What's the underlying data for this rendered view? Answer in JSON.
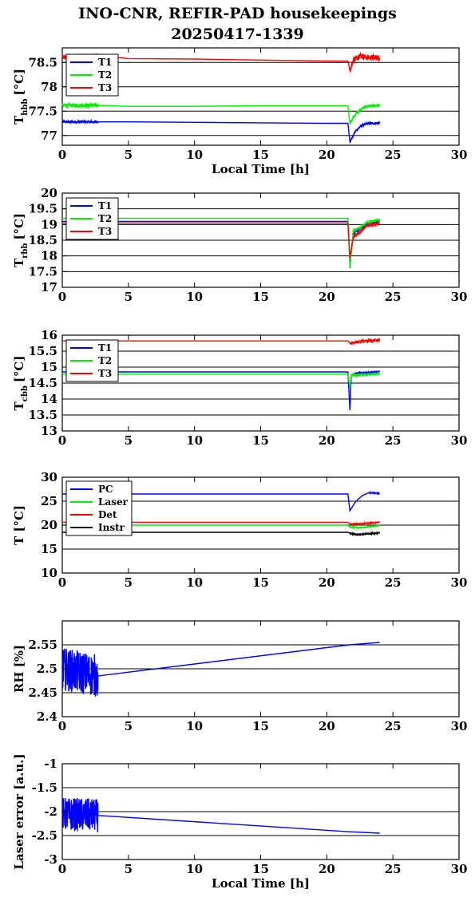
{
  "header": {
    "title": "INO-CNR, REFIR-PAD housekeepings",
    "subtitle": "20250417-1339"
  },
  "chart_data": [
    {
      "type": "line",
      "ylabel_main": "T",
      "ylabel_sub": "hbb",
      "ylabel_unit": "[°C]",
      "xlabel": "Local Time [h]",
      "xlim": [
        0,
        30
      ],
      "ylim": [
        76.8,
        78.8
      ],
      "xticks": [
        "0",
        "5",
        "10",
        "15",
        "20",
        "25",
        "30"
      ],
      "yticks": [
        {
          "v": 77,
          "label": "77"
        },
        {
          "v": 77.5,
          "label": "77.5"
        },
        {
          "v": 78,
          "label": "78"
        },
        {
          "v": 78.5,
          "label": "78.5"
        }
      ],
      "hlines": [
        77,
        77.5,
        78,
        78.5
      ],
      "series": [
        {
          "name": "T1",
          "color": "#0000ff",
          "points": [
            [
              0,
              77.28
            ],
            [
              2.7,
              77.28
            ],
            [
              5,
              77.28
            ],
            [
              10,
              77.27
            ],
            [
              15,
              77.26
            ],
            [
              20,
              77.25
            ],
            [
              21.6,
              77.25
            ],
            [
              21.75,
              76.87
            ],
            [
              22.2,
              77.1
            ],
            [
              22.6,
              77.2
            ],
            [
              23,
              77.24
            ],
            [
              24,
              77.26
            ]
          ],
          "noise": [
            [
              0,
              2.7,
              0.03
            ],
            [
              21.7,
              24,
              0.025
            ]
          ]
        },
        {
          "name": "T2",
          "color": "#00ee00",
          "points": [
            [
              0,
              77.62
            ],
            [
              2.7,
              77.62
            ],
            [
              5,
              77.6
            ],
            [
              10,
              77.6
            ],
            [
              15,
              77.61
            ],
            [
              20,
              77.61
            ],
            [
              21.6,
              77.61
            ],
            [
              21.75,
              77.25
            ],
            [
              22.2,
              77.45
            ],
            [
              22.6,
              77.55
            ],
            [
              23,
              77.6
            ],
            [
              24,
              77.62
            ]
          ],
          "noise": [
            [
              0,
              2.7,
              0.04
            ],
            [
              21.7,
              24,
              0.03
            ]
          ]
        },
        {
          "name": "T3",
          "color": "#ff0000",
          "points": [
            [
              0,
              78.6
            ],
            [
              2.7,
              78.65
            ],
            [
              5,
              78.58
            ],
            [
              10,
              78.57
            ],
            [
              15,
              78.55
            ],
            [
              20,
              78.53
            ],
            [
              21.6,
              78.53
            ],
            [
              21.75,
              78.33
            ],
            [
              22,
              78.55
            ],
            [
              22.5,
              78.65
            ],
            [
              23,
              78.6
            ],
            [
              24,
              78.6
            ]
          ],
          "noise": [
            [
              0,
              2.7,
              0.04
            ],
            [
              21.7,
              24,
              0.06
            ]
          ]
        }
      ]
    },
    {
      "type": "line",
      "ylabel_main": "T",
      "ylabel_sub": "rbb",
      "ylabel_unit": "[°C]",
      "xlabel": "",
      "xlim": [
        0,
        30
      ],
      "ylim": [
        17,
        20
      ],
      "xticks": [
        "0",
        "5",
        "10",
        "15",
        "20",
        "25",
        "30"
      ],
      "yticks": [
        {
          "v": 17,
          "label": "17"
        },
        {
          "v": 17.5,
          "label": "17.5"
        },
        {
          "v": 18,
          "label": "18"
        },
        {
          "v": 18.5,
          "label": "18.5"
        },
        {
          "v": 19,
          "label": "19"
        },
        {
          "v": 19.5,
          "label": "19.5"
        },
        {
          "v": 20,
          "label": "20"
        }
      ],
      "hlines": [
        17.5,
        18,
        18.5,
        19,
        19.5
      ],
      "series": [
        {
          "name": "T1",
          "color": "#0000ff",
          "points": [
            [
              0,
              19.1
            ],
            [
              21.6,
              19.1
            ],
            [
              21.75,
              17.75
            ],
            [
              22,
              18.7
            ],
            [
              22.5,
              18.85
            ],
            [
              23,
              19.0
            ],
            [
              24,
              19.1
            ]
          ],
          "noise": [
            [
              21.7,
              24,
              0.04
            ]
          ]
        },
        {
          "name": "T2",
          "color": "#00ee00",
          "points": [
            [
              0,
              19.2
            ],
            [
              21.6,
              19.2
            ],
            [
              21.75,
              17.6
            ],
            [
              22,
              18.8
            ],
            [
              22.5,
              18.9
            ],
            [
              23,
              19.05
            ],
            [
              24,
              19.15
            ]
          ],
          "noise": [
            [
              21.7,
              24,
              0.04
            ]
          ]
        },
        {
          "name": "T3",
          "color": "#ff0000",
          "points": [
            [
              0,
              19.05
            ],
            [
              21.6,
              19.05
            ],
            [
              21.75,
              17.95
            ],
            [
              22,
              18.6
            ],
            [
              22.5,
              18.75
            ],
            [
              23,
              18.95
            ],
            [
              24,
              19.05
            ]
          ],
          "noise": [
            [
              21.7,
              24,
              0.05
            ]
          ]
        }
      ]
    },
    {
      "type": "line",
      "ylabel_main": "T",
      "ylabel_sub": "cbb",
      "ylabel_unit": "[°C]",
      "xlabel": "",
      "xlim": [
        0,
        30
      ],
      "ylim": [
        13,
        16
      ],
      "xticks": [
        "0",
        "5",
        "10",
        "15",
        "20",
        "25",
        "30"
      ],
      "yticks": [
        {
          "v": 13,
          "label": "13"
        },
        {
          "v": 13.5,
          "label": "13.5"
        },
        {
          "v": 14,
          "label": "14"
        },
        {
          "v": 14.5,
          "label": "14.5"
        },
        {
          "v": 15,
          "label": "15"
        },
        {
          "v": 15.5,
          "label": "15.5"
        },
        {
          "v": 16,
          "label": "16"
        }
      ],
      "hlines": [
        13.5,
        14,
        14.5,
        15,
        15.5
      ],
      "series": [
        {
          "name": "T1",
          "color": "#0000ff",
          "points": [
            [
              0,
              14.85
            ],
            [
              21.6,
              14.85
            ],
            [
              21.75,
              13.65
            ],
            [
              21.85,
              14.75
            ],
            [
              22.5,
              14.82
            ],
            [
              24,
              14.85
            ]
          ],
          "noise": [
            [
              21.7,
              24,
              0.03
            ]
          ]
        },
        {
          "name": "T2",
          "color": "#00ee00",
          "points": [
            [
              0,
              14.78
            ],
            [
              21.6,
              14.78
            ],
            [
              21.75,
              14.35
            ],
            [
              21.85,
              14.75
            ],
            [
              22.5,
              14.75
            ],
            [
              24,
              14.8
            ]
          ],
          "noise": [
            [
              21.7,
              24,
              0.04
            ]
          ]
        },
        {
          "name": "T3",
          "color": "#ff0000",
          "points": [
            [
              0,
              15.82
            ],
            [
              21.6,
              15.82
            ],
            [
              21.75,
              15.75
            ],
            [
              22.5,
              15.8
            ],
            [
              24,
              15.85
            ]
          ],
          "noise": [
            [
              0,
              2.7,
              0.02
            ],
            [
              21.7,
              24,
              0.04
            ]
          ]
        }
      ]
    },
    {
      "type": "line",
      "ylabel_main": "T [°C]",
      "ylabel_sub": "",
      "ylabel_unit": "",
      "xlabel": "",
      "xlim": [
        0,
        30
      ],
      "ylim": [
        10,
        30
      ],
      "xticks": [
        "0",
        "5",
        "10",
        "15",
        "20",
        "25",
        "30"
      ],
      "yticks": [
        {
          "v": 10,
          "label": "10"
        },
        {
          "v": 15,
          "label": "15"
        },
        {
          "v": 20,
          "label": "20"
        },
        {
          "v": 25,
          "label": "25"
        },
        {
          "v": 30,
          "label": "30"
        }
      ],
      "hlines": [
        15,
        20,
        25
      ],
      "series": [
        {
          "name": "PC",
          "color": "#0000ff",
          "points": [
            [
              0,
              26.5
            ],
            [
              21.6,
              26.5
            ],
            [
              21.75,
              23.0
            ],
            [
              22.2,
              25.0
            ],
            [
              22.7,
              26.2
            ],
            [
              23.2,
              26.8
            ],
            [
              24,
              26.6
            ]
          ],
          "noise": [
            [
              23,
              24,
              0.1
            ]
          ]
        },
        {
          "name": "Laser",
          "color": "#00ee00",
          "points": [
            [
              0,
              20.0
            ],
            [
              21.6,
              20.0
            ],
            [
              21.75,
              19.6
            ],
            [
              22.5,
              19.5
            ],
            [
              23,
              19.6
            ],
            [
              24,
              19.9
            ]
          ],
          "noise": [
            [
              21.7,
              24,
              0.1
            ]
          ]
        },
        {
          "name": "Det",
          "color": "#ff0000",
          "points": [
            [
              0,
              20.6
            ],
            [
              21.6,
              20.6
            ],
            [
              21.75,
              20.2
            ],
            [
              22.5,
              20.3
            ],
            [
              24,
              20.6
            ]
          ],
          "noise": [
            [
              21.7,
              24,
              0.1
            ]
          ]
        },
        {
          "name": "Instr",
          "color": "#000000",
          "points": [
            [
              0,
              18.5
            ],
            [
              21.6,
              18.5
            ],
            [
              21.75,
              18.3
            ],
            [
              22.5,
              18.0
            ],
            [
              24,
              18.4
            ]
          ],
          "noise": [
            [
              21.7,
              24,
              0.15
            ]
          ]
        }
      ]
    },
    {
      "type": "line",
      "ylabel_main": "RH [%]",
      "ylabel_sub": "",
      "ylabel_unit": "",
      "xlabel": "",
      "xlim": [
        0,
        30
      ],
      "ylim": [
        2.4,
        2.6
      ],
      "xticks": [
        "0",
        "5",
        "10",
        "15",
        "20",
        "25",
        "30"
      ],
      "yticks": [
        {
          "v": 2.4,
          "label": "2.4"
        },
        {
          "v": 2.45,
          "label": "2.45"
        },
        {
          "v": 2.5,
          "label": "2.5"
        },
        {
          "v": 2.55,
          "label": "2.55"
        }
      ],
      "hlines": [
        2.45,
        2.5,
        2.55
      ],
      "series": [
        {
          "name": "",
          "color": "#0000ff",
          "points": [
            [
              0,
              2.5
            ],
            [
              2.7,
              2.485
            ],
            [
              21.7,
              2.55
            ],
            [
              24,
              2.555
            ]
          ],
          "noise": [
            [
              0,
              2.8,
              0.045
            ],
            [
              21.8,
              24,
              0.045
            ]
          ]
        }
      ]
    },
    {
      "type": "line",
      "ylabel_main": "Laser error [a.u.]",
      "ylabel_sub": "",
      "ylabel_unit": "",
      "xlabel": "Local Time [h]",
      "xlim": [
        0,
        30
      ],
      "ylim": [
        -3,
        -1
      ],
      "xticks": [
        "0",
        "5",
        "10",
        "15",
        "20",
        "25",
        "30"
      ],
      "yticks": [
        {
          "v": -3,
          "label": "-3"
        },
        {
          "v": -2.5,
          "label": "-2.5"
        },
        {
          "v": -2,
          "label": "-2"
        },
        {
          "v": -1.5,
          "label": "-1.5"
        },
        {
          "v": -1,
          "label": "-1"
        }
      ],
      "hlines": [
        -2.5,
        -2,
        -1.5
      ],
      "series": [
        {
          "name": "",
          "color": "#0000ff",
          "points": [
            [
              0,
              -2.05
            ],
            [
              2.7,
              -2.08
            ],
            [
              21.7,
              -2.42
            ],
            [
              24,
              -2.45
            ]
          ],
          "noise": [
            [
              0,
              2.8,
              0.35
            ],
            [
              21.8,
              24,
              0.35
            ]
          ]
        }
      ]
    }
  ]
}
